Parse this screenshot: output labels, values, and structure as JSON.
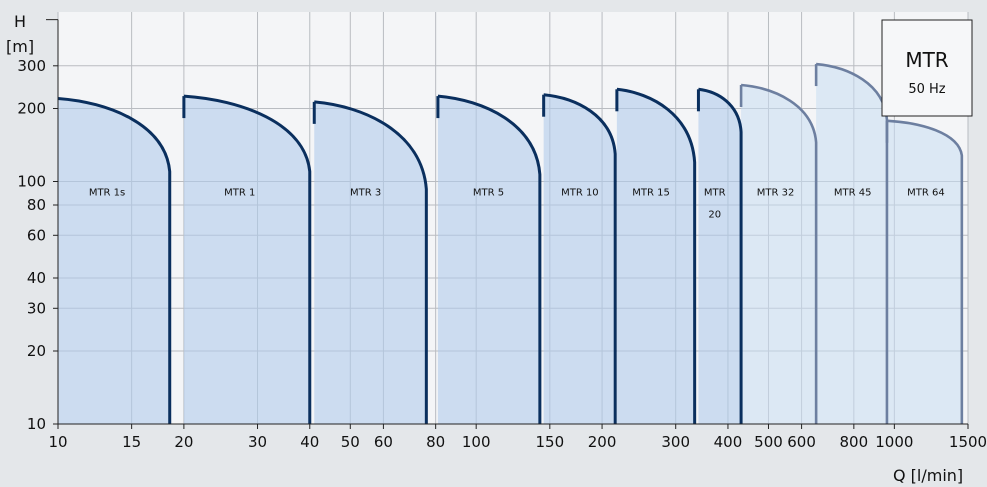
{
  "chart_data": {
    "type": "area",
    "y_axis": {
      "label_line1": "H",
      "label_line2": "[m]",
      "scale": "log",
      "ylim": [
        10,
        500
      ],
      "ticks": [
        10,
        20,
        30,
        40,
        60,
        80,
        100,
        200,
        300
      ],
      "tick_labels": [
        "10",
        "20",
        "30",
        "40",
        "60",
        "80",
        "100",
        "200",
        "300"
      ]
    },
    "x_axis": {
      "label": "Q [l/min]",
      "scale": "log",
      "xlim": [
        10,
        1500
      ],
      "ticks": [
        10,
        15,
        20,
        30,
        40,
        50,
        60,
        80,
        100,
        150,
        200,
        300,
        400,
        500,
        600,
        800,
        1000,
        1500
      ],
      "tick_labels": [
        "10",
        "15",
        "20",
        "30",
        "40",
        "50",
        "60",
        "80",
        "100",
        "150",
        "200",
        "300",
        "400",
        "500",
        "600",
        "800",
        "1000",
        "1500"
      ]
    },
    "grid": true,
    "legend_box": {
      "title": "MTR",
      "subtitle": "50 Hz",
      "position": "top-right"
    },
    "series": [
      {
        "name": "MTR 1s",
        "label": "MTR 1s",
        "x_min": 10,
        "x_max": 18.5,
        "h_max": 220,
        "h_at_x_max": 110,
        "label_q": 13.1,
        "label_h": 90,
        "color": "#0a2f5e"
      },
      {
        "name": "MTR 1",
        "label": "MTR 1",
        "x_min": 20,
        "x_max": 40,
        "h_max": 225,
        "h_at_x_max": 110,
        "label_q": 27.2,
        "label_h": 90,
        "color": "#0a2f5e"
      },
      {
        "name": "MTR 3",
        "label": "MTR 3",
        "x_min": 41,
        "x_max": 76,
        "h_max": 213,
        "h_at_x_max": 93,
        "label_q": 54.4,
        "label_h": 90,
        "color": "#0a2f5e"
      },
      {
        "name": "MTR 5",
        "label": "MTR 5",
        "x_min": 81,
        "x_max": 142,
        "h_max": 225,
        "h_at_x_max": 107,
        "label_q": 107,
        "label_h": 90,
        "color": "#0a2f5e"
      },
      {
        "name": "MTR 10",
        "label": "MTR 10",
        "x_min": 145,
        "x_max": 215,
        "h_max": 228,
        "h_at_x_max": 130,
        "label_q": 177,
        "label_h": 90,
        "color": "#0a2f5e"
      },
      {
        "name": "MTR 15",
        "label": "MTR 15",
        "x_min": 217,
        "x_max": 333,
        "h_max": 240,
        "h_at_x_max": 120,
        "label_q": 262,
        "label_h": 90,
        "color": "#0a2f5e"
      },
      {
        "name": "MTR 20",
        "label_line1": "MTR",
        "label_line2": "20",
        "x_min": 340,
        "x_max": 430,
        "h_max": 240,
        "h_at_x_max": 160,
        "label_q": 372,
        "label_h": 90,
        "label_h2": 73,
        "color": "#0a2f5e"
      },
      {
        "name": "MTR 32",
        "label": "MTR 32",
        "x_min": 430,
        "x_max": 650,
        "h_max": 250,
        "h_at_x_max": 145,
        "label_q": 520,
        "label_h": 90,
        "color": "#6d7fa0"
      },
      {
        "name": "MTR 45",
        "label": "MTR 45",
        "x_min": 650,
        "x_max": 960,
        "h_max": 305,
        "h_at_x_max": 180,
        "label_q": 795,
        "label_h": 90,
        "color": "#6d7fa0"
      },
      {
        "name": "MTR 64",
        "label": "MTR 64",
        "x_min": 960,
        "x_max": 1450,
        "h_max": 178,
        "h_at_x_max": 128,
        "label_q": 1190,
        "label_h": 90,
        "color": "#6d7fa0"
      }
    ]
  }
}
